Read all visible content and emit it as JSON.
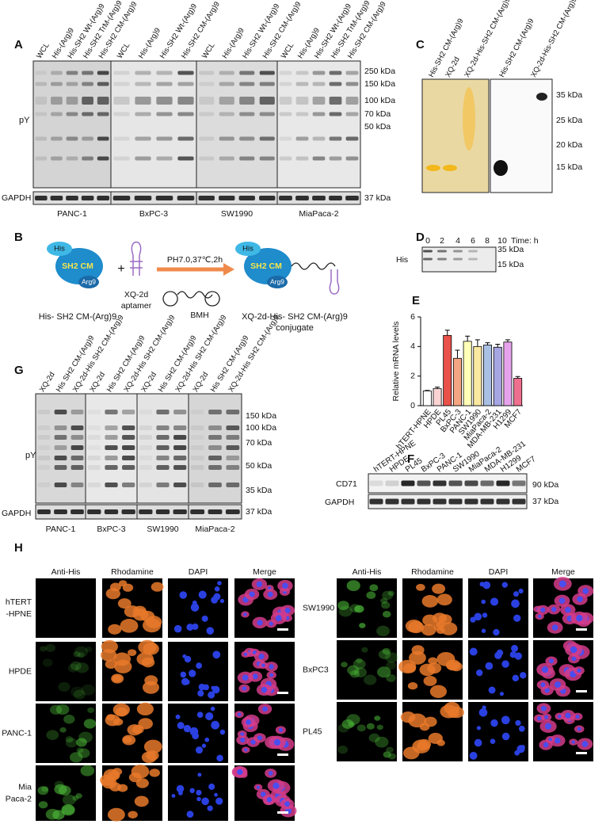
{
  "panel_A": {
    "label": "A",
    "groups": [
      {
        "lanes": [
          "WCL",
          "His-(Arg)9",
          "His-SH2 Wt-(Arg)9",
          "His-SH2 TrM-(Arg)9",
          "His-SH2 CM-(Arg)9"
        ],
        "cell_line": "PANC-1"
      },
      {
        "lanes": [
          "WCL",
          "His-(Arg)9",
          "His-SH2 Wt-(Arg)9",
          "His-SH2 CM-(Arg)9"
        ],
        "cell_line": "BxPC-3"
      },
      {
        "lanes": [
          "WCL",
          "His-(Arg)9",
          "His-SH2 Wt-(Arg)9",
          "His-SH2 CM-(Arg)9"
        ],
        "cell_line": "SW1990"
      },
      {
        "lanes": [
          "WCL",
          "His-(Arg)9",
          "His-SH2 Wt-(Arg)9",
          "His-SH2 TrM-(Arg)9",
          "His-SH2 CM-(Arg)9"
        ],
        "cell_line": "MiaPaca-2"
      }
    ],
    "rows": [
      "pY",
      "GAPDH"
    ],
    "markers": [
      "250 kDa",
      "150 kDa",
      "100 kDa",
      "70 kDa",
      "50 kDa",
      "37 kDa"
    ]
  },
  "panel_B": {
    "label": "B",
    "his": "His",
    "sh2": "SH2 CM",
    "arg": "Arg9",
    "plus": "+",
    "aptamer": [
      "XQ-2d",
      "aptamer"
    ],
    "condition": "PH7.0,37℃,2h",
    "linker": "BMH",
    "protein_name": "His- SH2 CM-(Arg)9",
    "conjugate_his": "His",
    "conjugate_sh2": "SH2 CM",
    "conjugate_arg": "Arg9",
    "conjugate_name": [
      "XQ-2d-His- SH2 CM-(Arg)9",
      "conjugate"
    ]
  },
  "panel_C": {
    "label": "C",
    "lanes": [
      "His-SH2 CM-(Arg)9",
      "XQ-2d",
      "XQ-2d-His-SH2 CM-(Arg)9",
      "His-SH2 CM-(Arg)9",
      "XQ-2d-His-SH2 CM-(Arg)9"
    ],
    "markers": [
      "35 kDa",
      "25 kDa",
      "20 kDa",
      "15 kDa"
    ]
  },
  "panel_D": {
    "label": "D",
    "times": [
      "0",
      "2",
      "4",
      "6",
      "8",
      "10"
    ],
    "time_unit": "Time: h",
    "row": "His",
    "markers": [
      "35 kDa",
      "15 kDa"
    ]
  },
  "chart_data": {
    "type": "bar",
    "panel_label": "E",
    "ylabel": "Relative mRNA levels",
    "categories": [
      "hTERT-HPNE",
      "HPDE",
      "PL45",
      "BxPC-3",
      "PANC-1",
      "SW1990",
      "MiaPaca-2",
      "MDA-MB-231",
      "H1299",
      "MCF7"
    ],
    "values": [
      1.0,
      1.15,
      4.75,
      3.2,
      4.35,
      4.0,
      4.1,
      3.95,
      4.3,
      1.85
    ],
    "errors": [
      0.03,
      0.1,
      0.35,
      0.55,
      0.35,
      0.45,
      0.15,
      0.2,
      0.15,
      0.12
    ],
    "colors": [
      "#ffffff",
      "#fbd3d3",
      "#e8524a",
      "#f4a582",
      "#ffffb8",
      "#fbe8a0",
      "#a9c0e4",
      "#a7a6e3",
      "#e6a2ea",
      "#ef6f8f"
    ],
    "ylim": [
      0,
      6
    ],
    "yticks": [
      0,
      2,
      4,
      6
    ]
  },
  "panel_F": {
    "label": "F",
    "lanes": [
      "hTERT-HPNE",
      "HPDE",
      "PL45",
      "BxPC-3",
      "PANC-1",
      "SW1990",
      "MiaPaca-2",
      "MDA-MB-231",
      "H1299",
      "MCF7"
    ],
    "rows": [
      "CD71",
      "GAPDH"
    ],
    "markers": [
      "90 kDa",
      "37 kDa"
    ]
  },
  "panel_G": {
    "label": "G",
    "groups": [
      {
        "lanes": [
          "XQ-2d",
          "His SH2 CM-(Arg)9",
          "XQ-2d-His SH2 CM-(Arg)9"
        ],
        "cell_line": "PANC-1"
      },
      {
        "lanes": [
          "XQ-2d",
          "His SH2 CM-(Arg)9",
          "XQ-2d-His SH2 CM-(Arg)9"
        ],
        "cell_line": "BxPC-3"
      },
      {
        "lanes": [
          "XQ-2d",
          "His SH2 CM-(Arg)9",
          "XQ-2d-His SH2 CM-(Arg)9"
        ],
        "cell_line": "SW1990"
      },
      {
        "lanes": [
          "XQ-2d",
          "His SH2 CM-(Arg)9",
          "XQ-2d-His SH2 CM-(Arg)9"
        ],
        "cell_line": "MiaPaca-2"
      }
    ],
    "rows": [
      "pY",
      "GAPDH"
    ],
    "markers": [
      "150 kDa",
      "100 kDa",
      "70 kDa",
      "50 kDa",
      "35 kDa",
      "37 kDa"
    ]
  },
  "panel_H": {
    "label": "H",
    "left_columns": [
      "Anti-His",
      "Rhodamine",
      "DAPI",
      "Merge"
    ],
    "right_columns": [
      "Anti-His",
      "Rhodamine",
      "DAPI",
      "Merge"
    ],
    "left_rows": [
      [
        "hTERT",
        "-HPNE"
      ],
      [
        "HPDE"
      ],
      [
        "PANC-1"
      ],
      [
        "Mia",
        "Paca-2"
      ]
    ],
    "right_rows": [
      [
        "SW1990"
      ],
      [
        "BxPC3"
      ],
      [
        "PL45"
      ]
    ]
  }
}
